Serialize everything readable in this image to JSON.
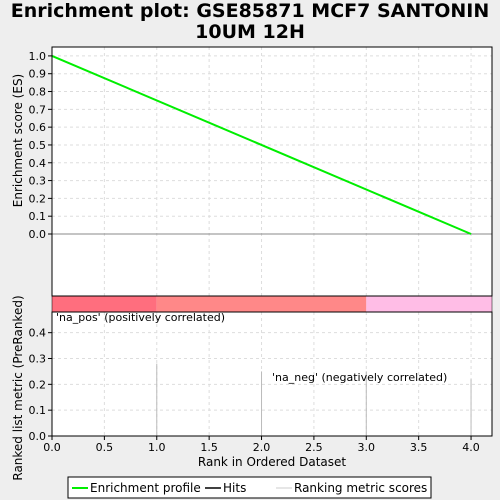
{
  "chart_data": {
    "type": "line",
    "title": "Enrichment plot: GSE85871 MCF7 SANTONIN 10UM 12H",
    "top_panel": {
      "ylabel": "Enrichment score (ES)",
      "ylim": [
        0.0,
        1.05
      ],
      "yticks": [
        "0.0",
        "0.1",
        "0.2",
        "0.3",
        "0.4",
        "0.5",
        "0.6",
        "0.7",
        "0.8",
        "0.9",
        "1.0"
      ],
      "series": [
        {
          "name": "Enrichment profile",
          "color": "#00ee00",
          "x": [
            0,
            4
          ],
          "y": [
            1.0,
            0.0
          ]
        }
      ]
    },
    "color_bar": {
      "segments": [
        {
          "from": 0,
          "to": 1,
          "color": "#ff6e7e"
        },
        {
          "from": 1,
          "to": 3,
          "color": "#ff8888"
        },
        {
          "from": 3,
          "to": 4.2,
          "color": "#ffbde6"
        }
      ]
    },
    "bottom_panel": {
      "ylabel": "Ranked list metric (PreRanked)",
      "ylim": [
        0.0,
        0.48
      ],
      "yticks": [
        "0.0",
        "0.1",
        "0.2",
        "0.3",
        "0.4"
      ],
      "bars_x": [
        1,
        2,
        3,
        4
      ],
      "bars_y": [
        0.28,
        0.25,
        0.25,
        0.22
      ],
      "pos_label": "'na_pos' (positively correlated)",
      "neg_label": "'na_neg' (negatively correlated)"
    },
    "xlabel": "Rank in Ordered Dataset",
    "xlim": [
      0,
      4.2
    ],
    "xticks": [
      "0.0",
      "0.5",
      "1.0",
      "1.5",
      "2.0",
      "2.5",
      "3.0",
      "3.5",
      "4.0"
    ],
    "legend": [
      {
        "label": "Enrichment profile",
        "color": "#00ee00"
      },
      {
        "label": "Hits",
        "color": "#000000"
      },
      {
        "label": "Ranking metric scores",
        "color": "#cccccc"
      }
    ]
  }
}
